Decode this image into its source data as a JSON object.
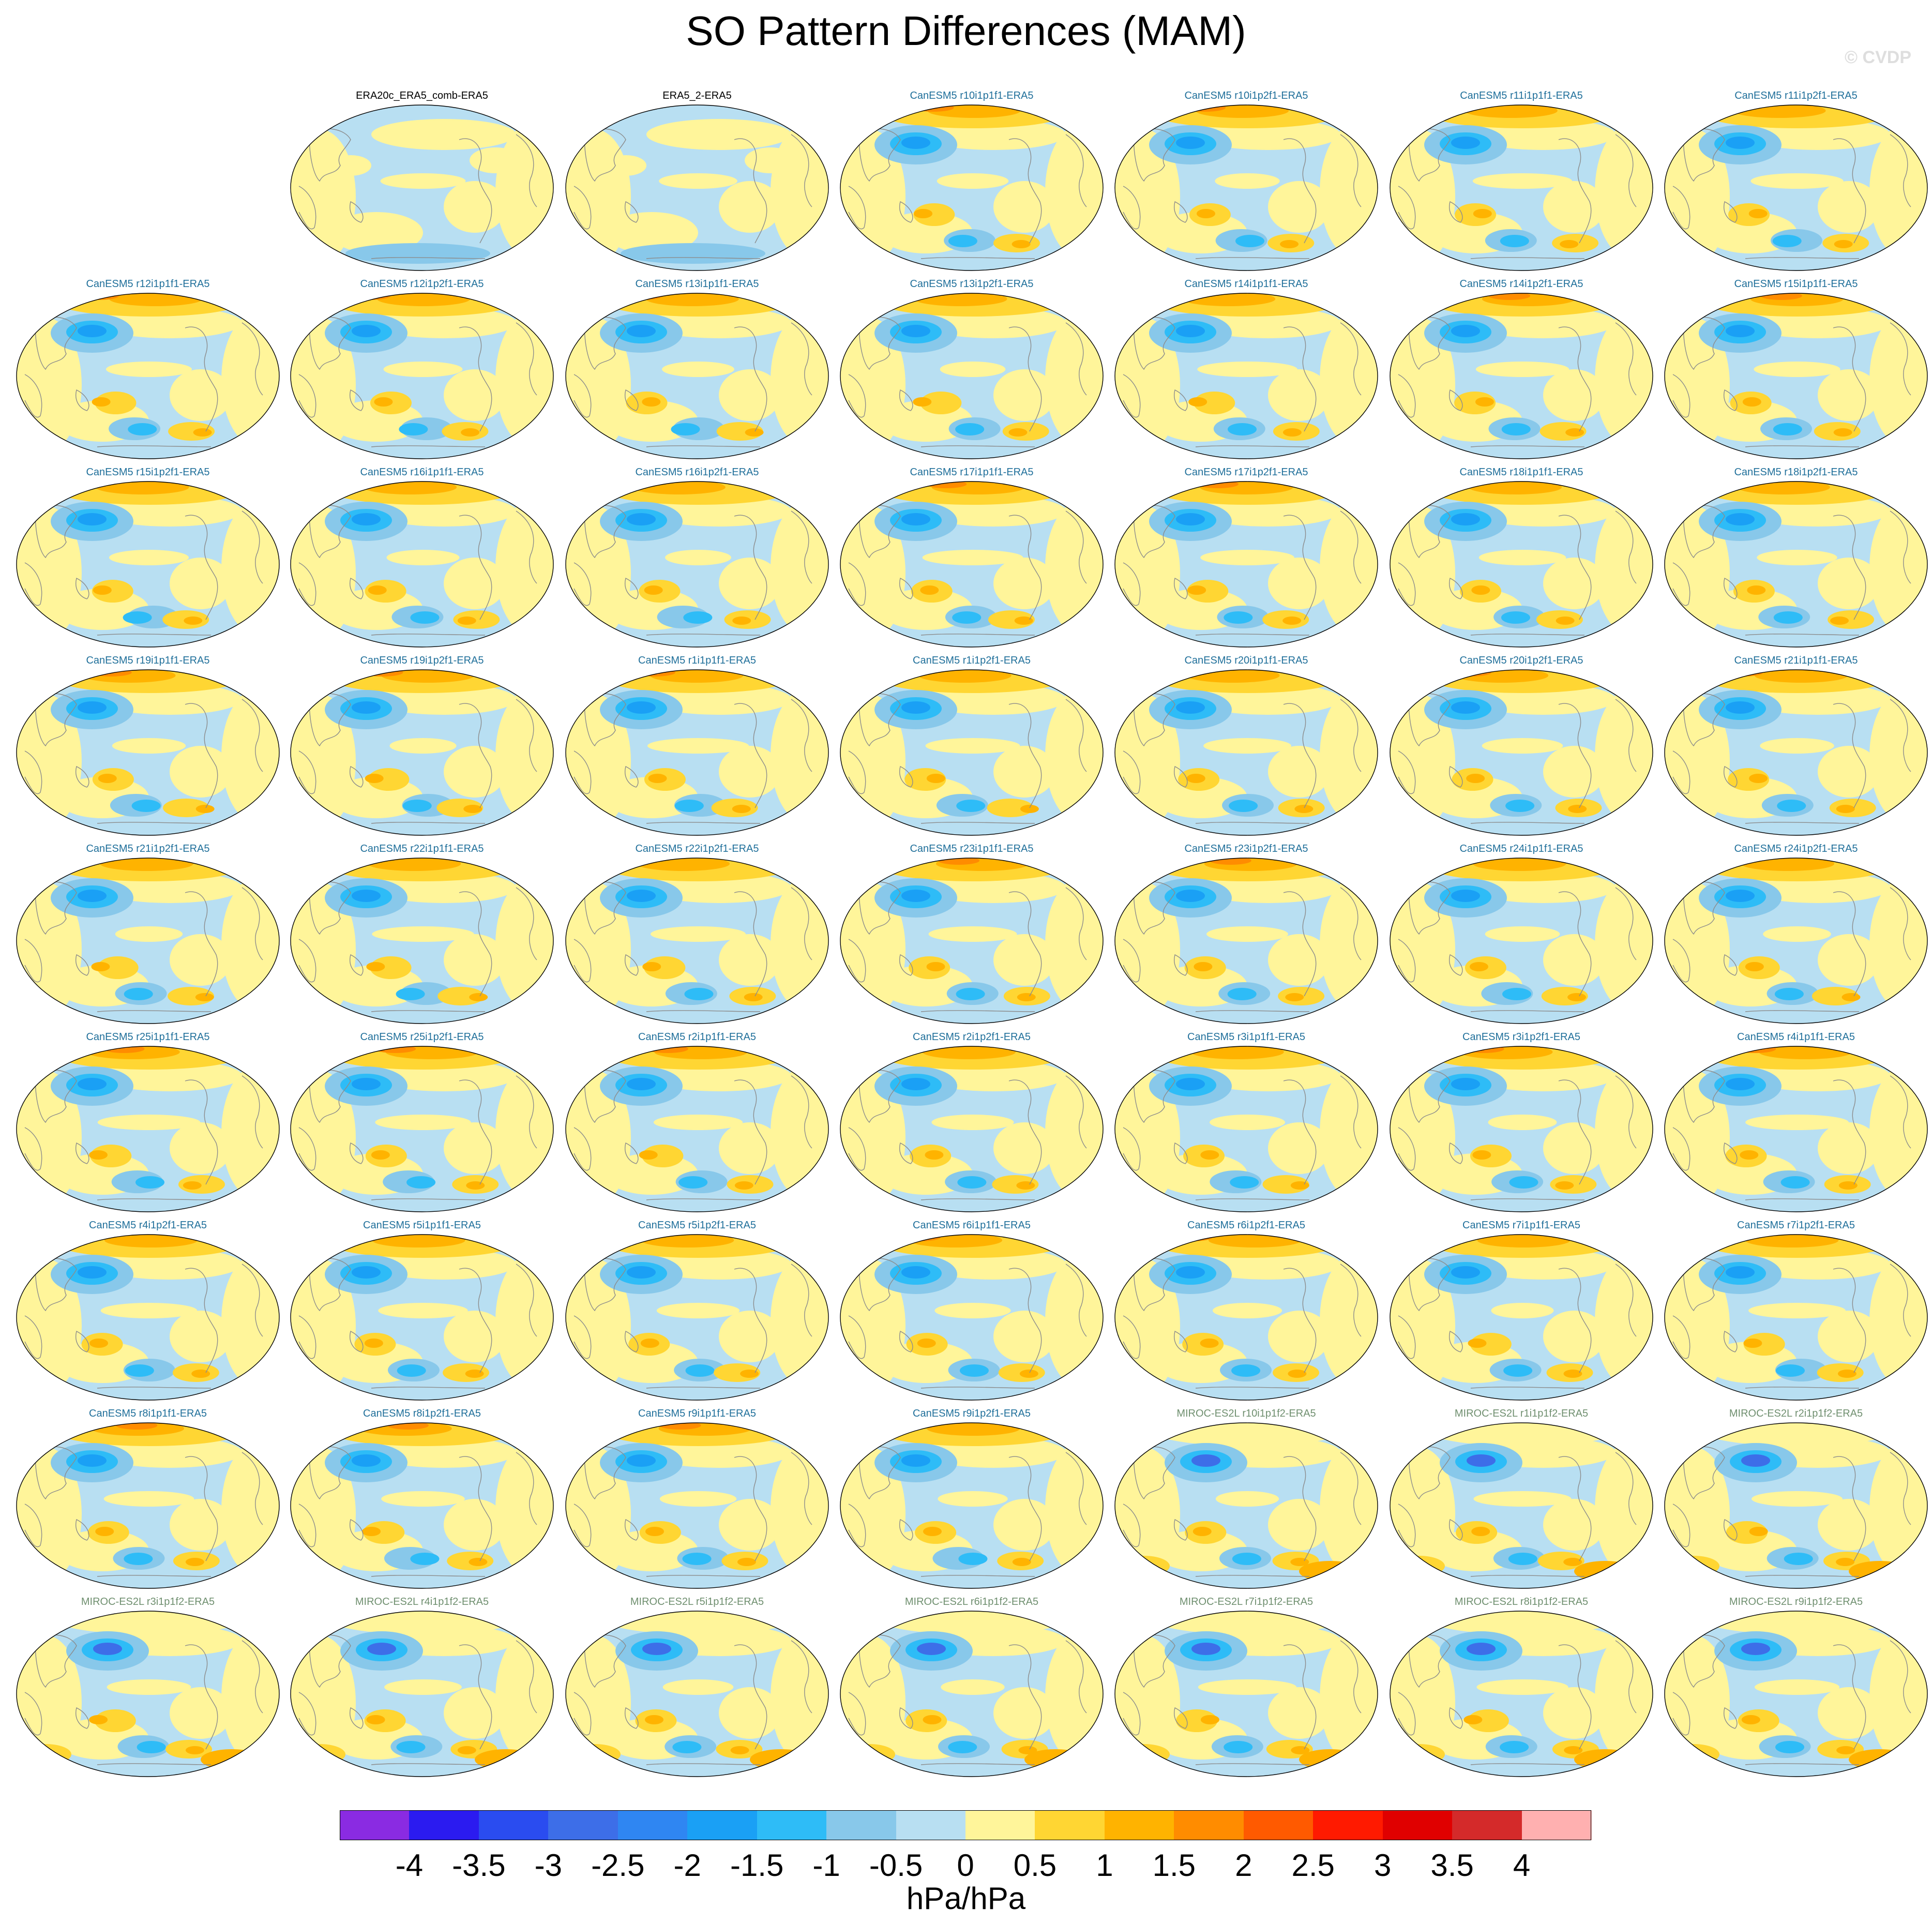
{
  "title": "SO Pattern Differences (MAM)",
  "credit": "© CVDP",
  "units": "hPa/hPa",
  "panels": [
    {
      "label": "ERA20c_ERA5_comb-ERA5",
      "group": "obs"
    },
    {
      "label": "ERA5_2-ERA5",
      "group": "obs"
    },
    {
      "label": "CanESM5 r10i1p1f1-ERA5",
      "group": "canesm"
    },
    {
      "label": "CanESM5 r10i1p2f1-ERA5",
      "group": "canesm"
    },
    {
      "label": "CanESM5 r11i1p1f1-ERA5",
      "group": "canesm"
    },
    {
      "label": "CanESM5 r11i1p2f1-ERA5",
      "group": "canesm"
    },
    {
      "label": "CanESM5 r12i1p1f1-ERA5",
      "group": "canesm"
    },
    {
      "label": "CanESM5 r12i1p2f1-ERA5",
      "group": "canesm"
    },
    {
      "label": "CanESM5 r13i1p1f1-ERA5",
      "group": "canesm"
    },
    {
      "label": "CanESM5 r13i1p2f1-ERA5",
      "group": "canesm"
    },
    {
      "label": "CanESM5 r14i1p1f1-ERA5",
      "group": "canesm"
    },
    {
      "label": "CanESM5 r14i1p2f1-ERA5",
      "group": "canesm"
    },
    {
      "label": "CanESM5 r15i1p1f1-ERA5",
      "group": "canesm"
    },
    {
      "label": "CanESM5 r15i1p2f1-ERA5",
      "group": "canesm"
    },
    {
      "label": "CanESM5 r16i1p1f1-ERA5",
      "group": "canesm"
    },
    {
      "label": "CanESM5 r16i1p2f1-ERA5",
      "group": "canesm"
    },
    {
      "label": "CanESM5 r17i1p1f1-ERA5",
      "group": "canesm"
    },
    {
      "label": "CanESM5 r17i1p2f1-ERA5",
      "group": "canesm"
    },
    {
      "label": "CanESM5 r18i1p1f1-ERA5",
      "group": "canesm"
    },
    {
      "label": "CanESM5 r18i1p2f1-ERA5",
      "group": "canesm"
    },
    {
      "label": "CanESM5 r19i1p1f1-ERA5",
      "group": "canesm"
    },
    {
      "label": "CanESM5 r19i1p2f1-ERA5",
      "group": "canesm"
    },
    {
      "label": "CanESM5 r1i1p1f1-ERA5",
      "group": "canesm"
    },
    {
      "label": "CanESM5 r1i1p2f1-ERA5",
      "group": "canesm"
    },
    {
      "label": "CanESM5 r20i1p1f1-ERA5",
      "group": "canesm"
    },
    {
      "label": "CanESM5 r20i1p2f1-ERA5",
      "group": "canesm"
    },
    {
      "label": "CanESM5 r21i1p1f1-ERA5",
      "group": "canesm"
    },
    {
      "label": "CanESM5 r21i1p2f1-ERA5",
      "group": "canesm"
    },
    {
      "label": "CanESM5 r22i1p1f1-ERA5",
      "group": "canesm"
    },
    {
      "label": "CanESM5 r22i1p2f1-ERA5",
      "group": "canesm"
    },
    {
      "label": "CanESM5 r23i1p1f1-ERA5",
      "group": "canesm"
    },
    {
      "label": "CanESM5 r23i1p2f1-ERA5",
      "group": "canesm"
    },
    {
      "label": "CanESM5 r24i1p1f1-ERA5",
      "group": "canesm"
    },
    {
      "label": "CanESM5 r24i1p2f1-ERA5",
      "group": "canesm"
    },
    {
      "label": "CanESM5 r25i1p1f1-ERA5",
      "group": "canesm"
    },
    {
      "label": "CanESM5 r25i1p2f1-ERA5",
      "group": "canesm"
    },
    {
      "label": "CanESM5 r2i1p1f1-ERA5",
      "group": "canesm"
    },
    {
      "label": "CanESM5 r2i1p2f1-ERA5",
      "group": "canesm"
    },
    {
      "label": "CanESM5 r3i1p1f1-ERA5",
      "group": "canesm"
    },
    {
      "label": "CanESM5 r3i1p2f1-ERA5",
      "group": "canesm"
    },
    {
      "label": "CanESM5 r4i1p1f1-ERA5",
      "group": "canesm"
    },
    {
      "label": "CanESM5 r4i1p2f1-ERA5",
      "group": "canesm"
    },
    {
      "label": "CanESM5 r5i1p1f1-ERA5",
      "group": "canesm"
    },
    {
      "label": "CanESM5 r5i1p2f1-ERA5",
      "group": "canesm"
    },
    {
      "label": "CanESM5 r6i1p1f1-ERA5",
      "group": "canesm"
    },
    {
      "label": "CanESM5 r6i1p2f1-ERA5",
      "group": "canesm"
    },
    {
      "label": "CanESM5 r7i1p1f1-ERA5",
      "group": "canesm"
    },
    {
      "label": "CanESM5 r7i1p2f1-ERA5",
      "group": "canesm"
    },
    {
      "label": "CanESM5 r8i1p1f1-ERA5",
      "group": "canesm"
    },
    {
      "label": "CanESM5 r8i1p2f1-ERA5",
      "group": "canesm"
    },
    {
      "label": "CanESM5 r9i1p1f1-ERA5",
      "group": "canesm"
    },
    {
      "label": "CanESM5 r9i1p2f1-ERA5",
      "group": "canesm"
    },
    {
      "label": "MIROC-ES2L r10i1p1f2-ERA5",
      "group": "miroc"
    },
    {
      "label": "MIROC-ES2L r1i1p1f2-ERA5",
      "group": "miroc"
    },
    {
      "label": "MIROC-ES2L r2i1p1f2-ERA5",
      "group": "miroc"
    },
    {
      "label": "MIROC-ES2L r3i1p1f2-ERA5",
      "group": "miroc"
    },
    {
      "label": "MIROC-ES2L r4i1p1f2-ERA5",
      "group": "miroc"
    },
    {
      "label": "MIROC-ES2L r5i1p1f2-ERA5",
      "group": "miroc"
    },
    {
      "label": "MIROC-ES2L r6i1p1f2-ERA5",
      "group": "miroc"
    },
    {
      "label": "MIROC-ES2L r7i1p1f2-ERA5",
      "group": "miroc"
    },
    {
      "label": "MIROC-ES2L r8i1p1f2-ERA5",
      "group": "miroc"
    },
    {
      "label": "MIROC-ES2L r9i1p1f2-ERA5",
      "group": "miroc"
    }
  ],
  "group_colors": {
    "obs": "#000000",
    "canesm": "#1f6f9a",
    "miroc": "#6f8f6f"
  },
  "chart_data": {
    "type": "heatmap",
    "title": "SO Pattern Differences (MAM)",
    "units": "hPa/hPa",
    "colorbar": {
      "tick_labels": [
        "-4",
        "-3.5",
        "-3",
        "-2.5",
        "-2",
        "-1.5",
        "-1",
        "-0.5",
        "0",
        "0.5",
        "1",
        "1.5",
        "2",
        "2.5",
        "3",
        "3.5",
        "4"
      ],
      "levels": [
        -4,
        -3.5,
        -3,
        -2.5,
        -2,
        -1.5,
        -1,
        -0.5,
        0,
        0.5,
        1,
        1.5,
        2,
        2.5,
        3,
        3.5,
        4
      ],
      "colors": [
        "#8a2be2",
        "#2b1bf0",
        "#2a4cf0",
        "#3d6ee8",
        "#2f86f2",
        "#1aa0f5",
        "#2ebcf7",
        "#88c8ea",
        "#b8dff2",
        "#fff59a",
        "#ffd633",
        "#ffb300",
        "#ff8c00",
        "#ff5a00",
        "#ff1a00",
        "#e00000",
        "#d42a2a",
        "#ffb0b0"
      ]
    }
  }
}
